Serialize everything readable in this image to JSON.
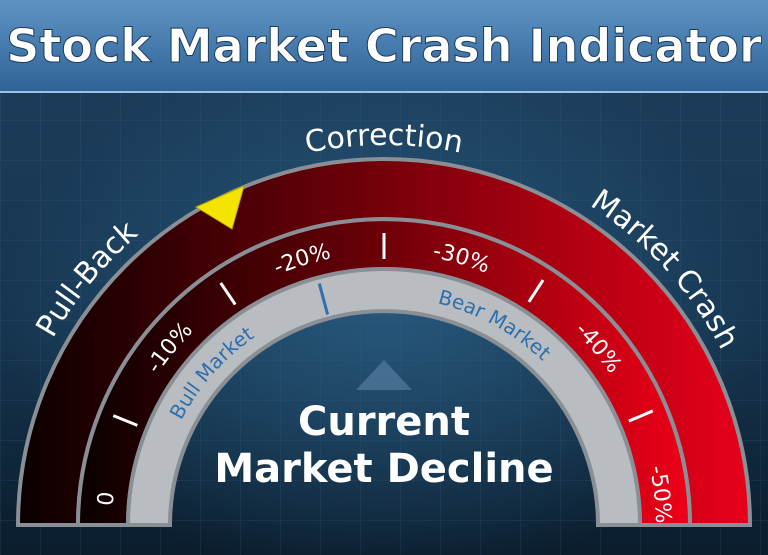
{
  "header": {
    "title": "Stock Market Crash Indicator"
  },
  "gauge": {
    "zone_labels": [
      "Pull-Back",
      "Correction",
      "Market Crash"
    ],
    "scale_labels": [
      "0",
      "-10%",
      "-20%",
      "-30%",
      "-40%",
      "-50%"
    ],
    "market_labels": [
      "Bull Market",
      "Bear Market"
    ]
  },
  "center_label": [
    "Current",
    "Market Decline"
  ]
}
